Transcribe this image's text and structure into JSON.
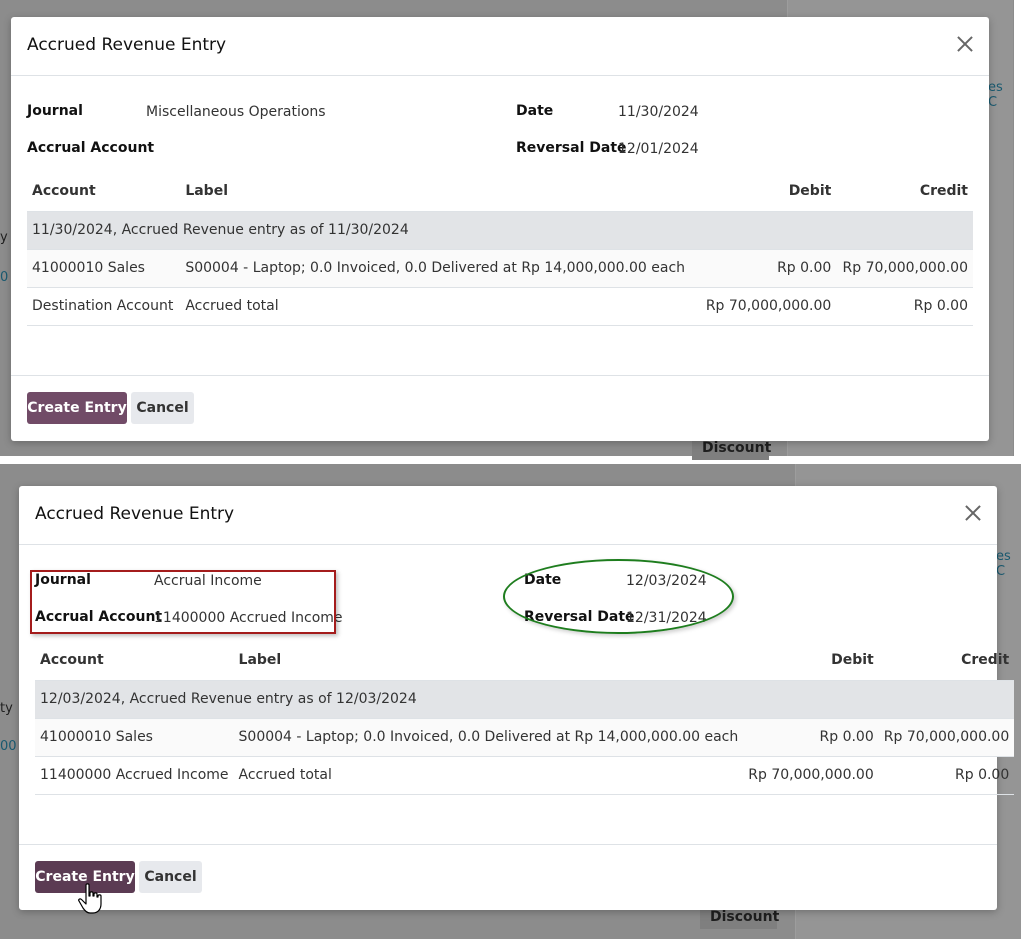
{
  "top": {
    "modal_title": "Accrued Revenue Entry",
    "journal_label": "Journal",
    "journal_value": "Miscellaneous Operations",
    "accrual_account_label": "Accrual Account",
    "accrual_account_value": "",
    "date_label": "Date",
    "date_value": "11/30/2024",
    "reversal_date_label": "Reversal Date",
    "reversal_date_value": "12/01/2024",
    "columns": {
      "account": "Account",
      "label": "Label",
      "debit": "Debit",
      "credit": "Credit"
    },
    "section_row": "11/30/2024, Accrued Revenue entry as of 11/30/2024",
    "rows": [
      {
        "account": "41000010 Sales",
        "label": "S00004 - Laptop; 0.0 Invoiced, 0.0 Delivered at Rp 14,000,000.00 each",
        "debit": "Rp 0.00",
        "credit": "Rp 70,000,000.00"
      },
      {
        "account": "Destination Account",
        "label": "Accrued total",
        "debit": "Rp 70,000,000.00",
        "credit": "Rp 0.00"
      }
    ],
    "create_button": "Create Entry",
    "cancel_button": "Cancel",
    "bg_fragments": {
      "right": "es C",
      "left1": "y",
      "left2": "0",
      "discount": "Discount"
    }
  },
  "bottom": {
    "modal_title": "Accrued Revenue Entry",
    "journal_label": "Journal",
    "journal_value": "Accrual Income",
    "accrual_account_label": "Accrual Account",
    "accrual_account_value": "11400000 Accrued Income",
    "date_label": "Date",
    "date_value": "12/03/2024",
    "reversal_date_label": "Reversal Date",
    "reversal_date_value": "12/31/2024",
    "columns": {
      "account": "Account",
      "label": "Label",
      "debit": "Debit",
      "credit": "Credit"
    },
    "section_row": "12/03/2024, Accrued Revenue entry as of 12/03/2024",
    "rows": [
      {
        "account": "41000010 Sales",
        "label": "S00004 - Laptop; 0.0 Invoiced, 0.0 Delivered at Rp 14,000,000.00 each",
        "debit": "Rp 0.00",
        "credit": "Rp 70,000,000.00"
      },
      {
        "account": "11400000 Accrued Income",
        "label": "Accrued total",
        "debit": "Rp 70,000,000.00",
        "credit": "Rp 0.00"
      }
    ],
    "create_button": "Create Entry",
    "cancel_button": "Cancel",
    "bg_fragments": {
      "right": "es C",
      "left1": "ty",
      "left2": "00",
      "discount": "Discount"
    }
  },
  "colors": {
    "primary_button": "#714b67",
    "highlight_rect": "#a41c1c",
    "highlight_ellipse": "#1e7d1e",
    "overlay": "#8c8c8c"
  },
  "icons": [
    "close-icon",
    "hand-cursor-icon"
  ]
}
